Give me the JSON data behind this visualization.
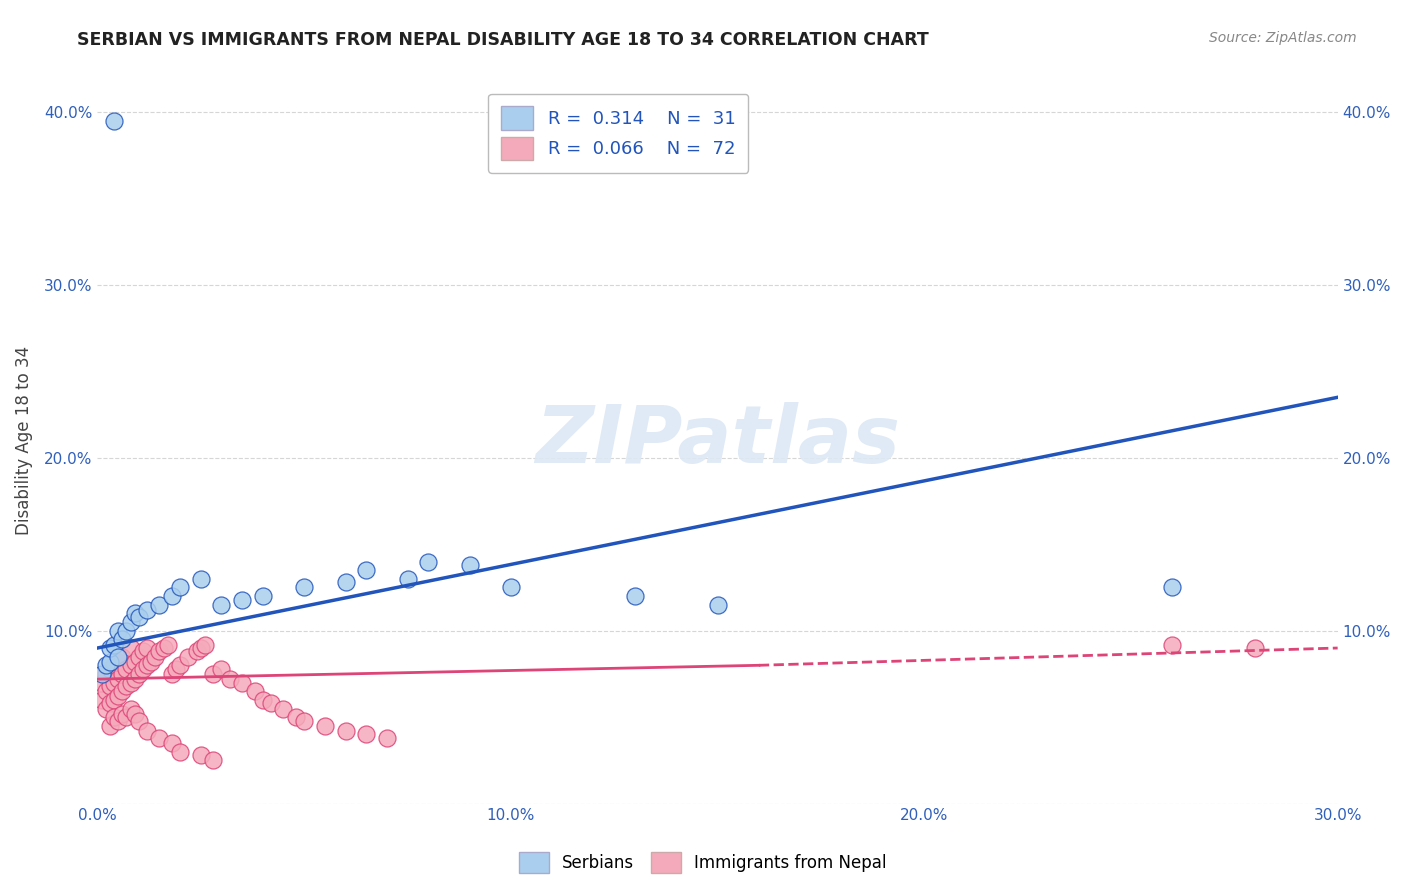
{
  "title": "SERBIAN VS IMMIGRANTS FROM NEPAL DISABILITY AGE 18 TO 34 CORRELATION CHART",
  "source": "Source: ZipAtlas.com",
  "ylabel": "Disability Age 18 to 34",
  "xlim": [
    0.0,
    0.3
  ],
  "ylim": [
    0.0,
    0.42
  ],
  "xticks": [
    0.0,
    0.1,
    0.2,
    0.3
  ],
  "xtick_labels": [
    "0.0%",
    "10.0%",
    "20.0%",
    "30.0%"
  ],
  "yticks": [
    0.0,
    0.1,
    0.2,
    0.3,
    0.4
  ],
  "ytick_labels": [
    "",
    "10.0%",
    "20.0%",
    "30.0%",
    "40.0%"
  ],
  "serbian_color": "#aacfee",
  "nepal_color": "#f5aabb",
  "trend_serbian_color": "#2255bb",
  "trend_nepal_color": "#dd4477",
  "watermark_color": "#dce8f5",
  "background_color": "#ffffff",
  "grid_color": "#cccccc",
  "serbian_x": [
    0.001,
    0.002,
    0.003,
    0.003,
    0.004,
    0.005,
    0.005,
    0.006,
    0.007,
    0.008,
    0.009,
    0.01,
    0.012,
    0.015,
    0.018,
    0.02,
    0.025,
    0.03,
    0.035,
    0.04,
    0.05,
    0.06,
    0.065,
    0.075,
    0.08,
    0.09,
    0.1,
    0.26,
    0.004,
    0.15,
    0.13
  ],
  "serbian_y": [
    0.075,
    0.08,
    0.082,
    0.09,
    0.092,
    0.085,
    0.1,
    0.095,
    0.1,
    0.105,
    0.11,
    0.108,
    0.112,
    0.115,
    0.12,
    0.125,
    0.13,
    0.115,
    0.118,
    0.12,
    0.125,
    0.128,
    0.135,
    0.13,
    0.14,
    0.138,
    0.125,
    0.125,
    0.395,
    0.115,
    0.12
  ],
  "nepal_x": [
    0.001,
    0.001,
    0.002,
    0.002,
    0.002,
    0.003,
    0.003,
    0.003,
    0.004,
    0.004,
    0.004,
    0.005,
    0.005,
    0.005,
    0.006,
    0.006,
    0.006,
    0.007,
    0.007,
    0.008,
    0.008,
    0.008,
    0.009,
    0.009,
    0.01,
    0.01,
    0.011,
    0.011,
    0.012,
    0.012,
    0.013,
    0.014,
    0.015,
    0.016,
    0.017,
    0.018,
    0.019,
    0.02,
    0.022,
    0.024,
    0.025,
    0.026,
    0.028,
    0.03,
    0.032,
    0.035,
    0.038,
    0.04,
    0.042,
    0.045,
    0.048,
    0.05,
    0.055,
    0.06,
    0.065,
    0.07,
    0.003,
    0.004,
    0.005,
    0.006,
    0.007,
    0.008,
    0.009,
    0.01,
    0.012,
    0.015,
    0.018,
    0.02,
    0.025,
    0.028,
    0.26,
    0.28
  ],
  "nepal_y": [
    0.06,
    0.07,
    0.055,
    0.065,
    0.075,
    0.058,
    0.068,
    0.078,
    0.06,
    0.07,
    0.08,
    0.062,
    0.072,
    0.082,
    0.065,
    0.075,
    0.085,
    0.068,
    0.078,
    0.07,
    0.08,
    0.09,
    0.072,
    0.082,
    0.075,
    0.085,
    0.078,
    0.088,
    0.08,
    0.09,
    0.082,
    0.085,
    0.088,
    0.09,
    0.092,
    0.075,
    0.078,
    0.08,
    0.085,
    0.088,
    0.09,
    0.092,
    0.075,
    0.078,
    0.072,
    0.07,
    0.065,
    0.06,
    0.058,
    0.055,
    0.05,
    0.048,
    0.045,
    0.042,
    0.04,
    0.038,
    0.045,
    0.05,
    0.048,
    0.052,
    0.05,
    0.055,
    0.052,
    0.048,
    0.042,
    0.038,
    0.035,
    0.03,
    0.028,
    0.025,
    0.092,
    0.09
  ],
  "trend_serbian_start_x": 0.0,
  "trend_serbian_start_y": 0.09,
  "trend_serbian_end_x": 0.3,
  "trend_serbian_end_y": 0.235,
  "trend_nepal_solid_start_x": 0.0,
  "trend_nepal_solid_start_y": 0.072,
  "trend_nepal_solid_end_x": 0.16,
  "trend_nepal_solid_end_y": 0.08,
  "trend_nepal_dash_start_x": 0.16,
  "trend_nepal_dash_start_y": 0.08,
  "trend_nepal_dash_end_x": 0.3,
  "trend_nepal_dash_end_y": 0.09
}
